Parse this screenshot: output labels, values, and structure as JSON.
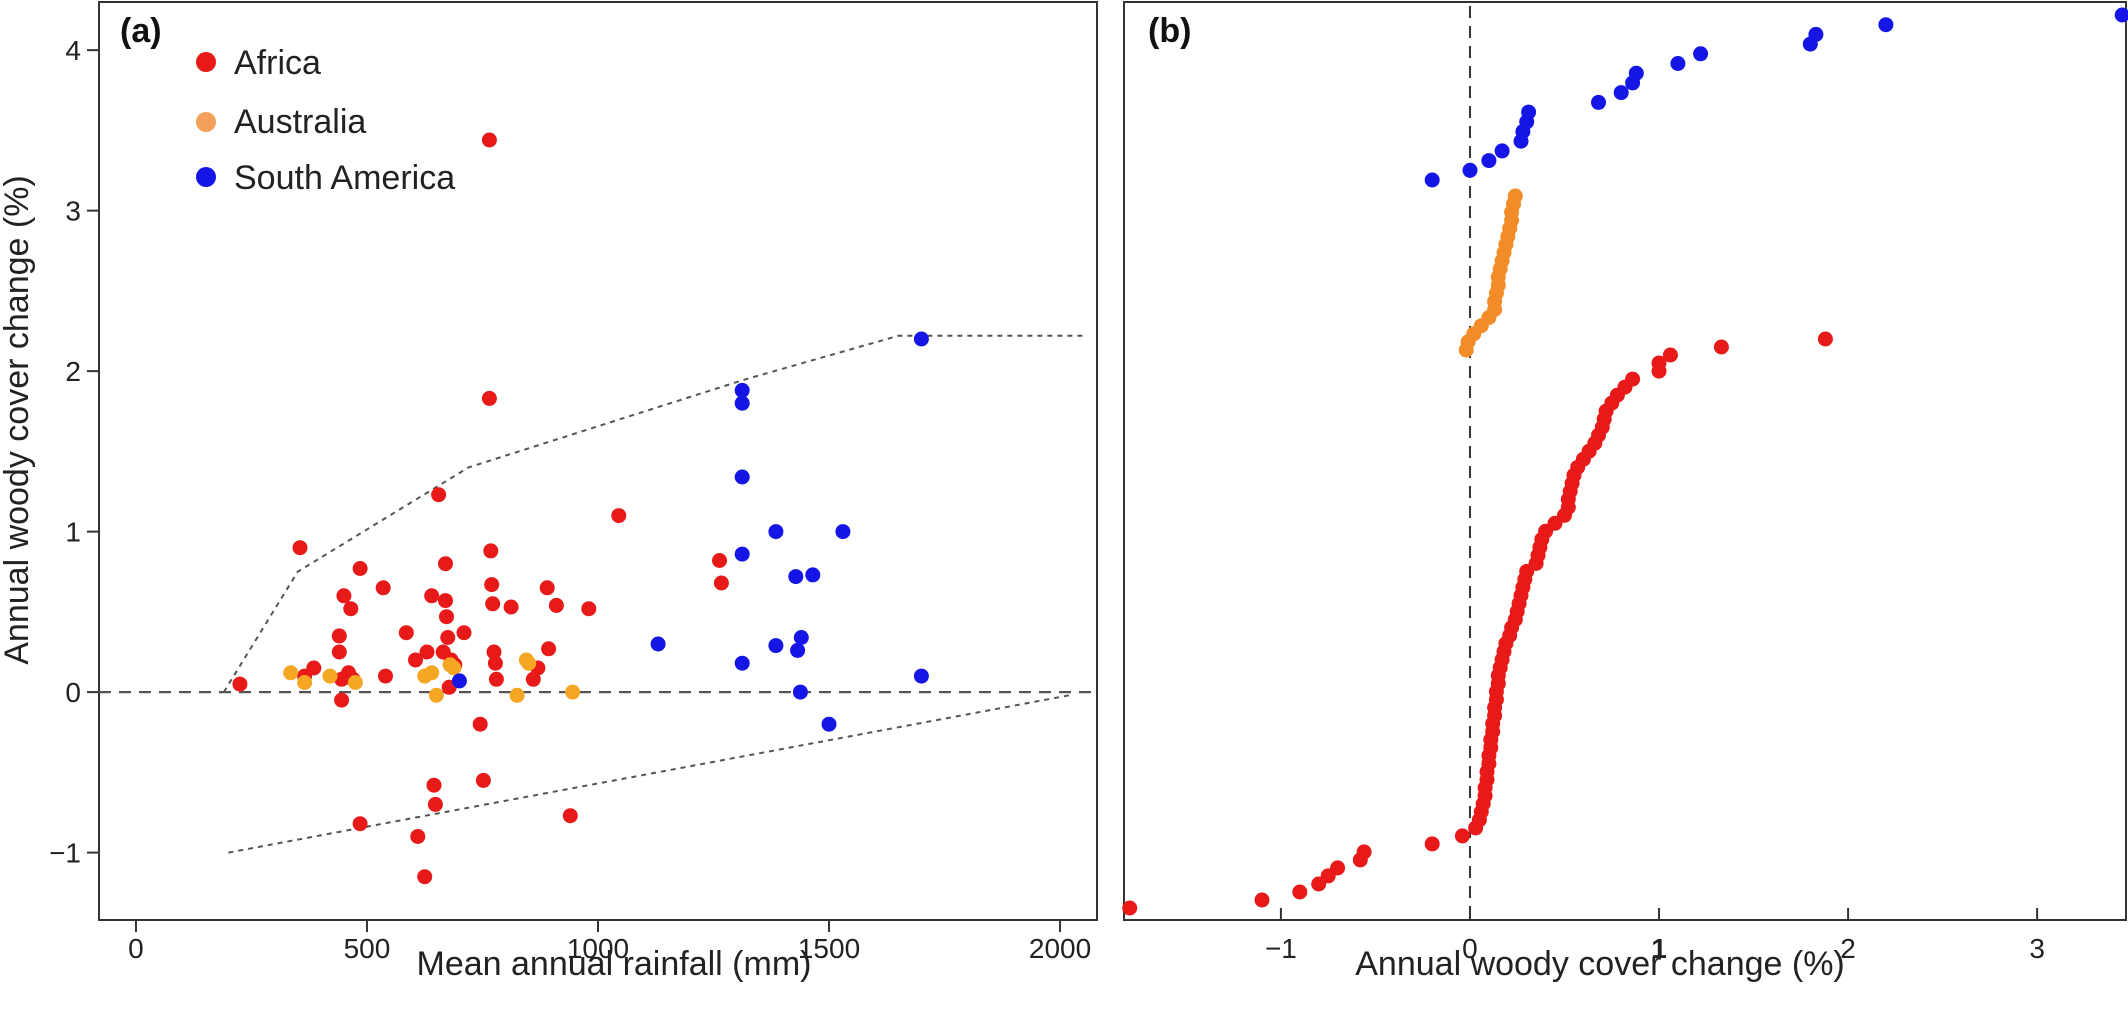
{
  "chart_data": [
    {
      "panel": "(a)",
      "type": "scatter",
      "xlabel": "Mean annual rainfall (mm)",
      "ylabel": "Annual woody cover change (%)",
      "xlim": [
        -80,
        2080
      ],
      "ylim": [
        -1.42,
        4.3
      ],
      "xticks": [
        0,
        500,
        1000,
        1500,
        2000
      ],
      "yticks": [
        -1,
        0,
        1,
        2,
        3,
        4
      ],
      "legend_position": "top-left",
      "reference_lines": [
        {
          "style": "dashed",
          "color": "#555555",
          "points": [
            [
              -80,
              0
            ],
            [
              2080,
              0
            ]
          ]
        },
        {
          "style": "dotted",
          "color": "#555555",
          "points": [
            [
              190,
              0
            ],
            [
              350,
              0.75
            ],
            [
              720,
              1.4
            ],
            [
              1320,
              1.95
            ],
            [
              1650,
              2.22
            ],
            [
              2050,
              2.22
            ]
          ]
        },
        {
          "style": "dotted",
          "color": "#555555",
          "points": [
            [
              200,
              -1.0
            ],
            [
              2020,
              -0.02
            ]
          ]
        }
      ],
      "series": [
        {
          "name": "Africa",
          "color": "#e81919",
          "points": [
            [
              225,
              0.05
            ],
            [
              355,
              0.9
            ],
            [
              365,
              0.1
            ],
            [
              385,
              0.15
            ],
            [
              440,
              0.35
            ],
            [
              440,
              0.25
            ],
            [
              445,
              -0.05
            ],
            [
              445,
              0.08
            ],
            [
              450,
              0.6
            ],
            [
              460,
              0.12
            ],
            [
              465,
              0.52
            ],
            [
              470,
              0.08
            ],
            [
              485,
              0.77
            ],
            [
              485,
              -0.82
            ],
            [
              535,
              0.65
            ],
            [
              540,
              0.1
            ],
            [
              585,
              0.37
            ],
            [
              605,
              0.2
            ],
            [
              610,
              -0.9
            ],
            [
              625,
              -1.15
            ],
            [
              630,
              0.25
            ],
            [
              640,
              0.6
            ],
            [
              645,
              -0.58
            ],
            [
              648,
              -0.7
            ],
            [
              655,
              1.23
            ],
            [
              665,
              0.25
            ],
            [
              670,
              0.8
            ],
            [
              670,
              0.57
            ],
            [
              672,
              0.47
            ],
            [
              675,
              0.34
            ],
            [
              678,
              0.03
            ],
            [
              682,
              0.2
            ],
            [
              690,
              0.17
            ],
            [
              710,
              0.37
            ],
            [
              745,
              -0.2
            ],
            [
              752,
              -0.55
            ],
            [
              765,
              3.44
            ],
            [
              765,
              1.83
            ],
            [
              768,
              0.88
            ],
            [
              770,
              0.67
            ],
            [
              772,
              0.55
            ],
            [
              775,
              0.25
            ],
            [
              778,
              0.18
            ],
            [
              780,
              0.08
            ],
            [
              812,
              0.53
            ],
            [
              860,
              0.08
            ],
            [
              870,
              0.15
            ],
            [
              890,
              0.65
            ],
            [
              893,
              0.27
            ],
            [
              910,
              0.54
            ],
            [
              940,
              -0.77
            ],
            [
              980,
              0.52
            ],
            [
              1045,
              1.1
            ],
            [
              1263,
              0.82
            ],
            [
              1267,
              0.68
            ]
          ]
        },
        {
          "name": "Australia",
          "color": "#f5a623",
          "points": [
            [
              335,
              0.12
            ],
            [
              365,
              0.06
            ],
            [
              420,
              0.1
            ],
            [
              475,
              0.06
            ],
            [
              625,
              0.1
            ],
            [
              640,
              0.12
            ],
            [
              650,
              -0.02
            ],
            [
              680,
              0.17
            ],
            [
              688,
              0.15
            ],
            [
              825,
              -0.02
            ],
            [
              845,
              0.2
            ],
            [
              850,
              0.18
            ],
            [
              945,
              0.0
            ]
          ]
        },
        {
          "name": "South America",
          "color": "#1515e6",
          "points": [
            [
              700,
              0.07
            ],
            [
              1130,
              0.3
            ],
            [
              1312,
              1.88
            ],
            [
              1312,
              1.8
            ],
            [
              1312,
              1.34
            ],
            [
              1312,
              0.86
            ],
            [
              1312,
              0.18
            ],
            [
              1385,
              1.0
            ],
            [
              1385,
              0.29
            ],
            [
              1428,
              0.72
            ],
            [
              1432,
              0.26
            ],
            [
              1438,
              0.0
            ],
            [
              1440,
              0.34
            ],
            [
              1465,
              0.73
            ],
            [
              1500,
              -0.2
            ],
            [
              1530,
              1.0
            ],
            [
              1700,
              2.2
            ],
            [
              1700,
              0.1
            ]
          ]
        }
      ]
    },
    {
      "panel": "(b)",
      "type": "scatter",
      "xlabel": "Annual woody cover change (%)",
      "ylabel": "",
      "xlim": [
        -1.83,
        3.47
      ],
      "xticks": [
        -1,
        0,
        1,
        2,
        3
      ],
      "reference_lines": [
        {
          "style": "dashed",
          "color": "#333333",
          "orientation": "vertical",
          "x": 0
        }
      ],
      "series": [
        {
          "name": "Africa",
          "color": "#e81919",
          "values": [
            -1.8,
            -1.1,
            -0.9,
            -0.8,
            -0.75,
            -0.7,
            -0.58,
            -0.56,
            -0.2,
            -0.04,
            0.03,
            0.05,
            0.06,
            0.07,
            0.08,
            0.08,
            0.09,
            0.09,
            0.1,
            0.1,
            0.11,
            0.11,
            0.12,
            0.12,
            0.13,
            0.13,
            0.14,
            0.14,
            0.15,
            0.15,
            0.16,
            0.17,
            0.18,
            0.19,
            0.21,
            0.22,
            0.24,
            0.25,
            0.26,
            0.27,
            0.28,
            0.29,
            0.3,
            0.35,
            0.36,
            0.37,
            0.38,
            0.4,
            0.45,
            0.5,
            0.52,
            0.52,
            0.53,
            0.54,
            0.55,
            0.57,
            0.6,
            0.63,
            0.66,
            0.68,
            0.7,
            0.71,
            0.72,
            0.75,
            0.78,
            0.82,
            0.86,
            1.0,
            1.0,
            1.06,
            1.33,
            1.88
          ]
        },
        {
          "name": "Australia",
          "color": "#f28c28",
          "values": [
            -0.02,
            -0.01,
            0.02,
            0.06,
            0.1,
            0.13,
            0.13,
            0.14,
            0.15,
            0.15,
            0.16,
            0.17,
            0.18,
            0.19,
            0.2,
            0.21,
            0.22,
            0.22,
            0.23,
            0.24
          ]
        },
        {
          "name": "South America",
          "color": "#1515e6",
          "values": [
            -0.2,
            0.0,
            0.1,
            0.17,
            0.27,
            0.28,
            0.3,
            0.31,
            0.68,
            0.8,
            0.86,
            0.88,
            1.1,
            1.22,
            1.8,
            1.83,
            2.2,
            3.45
          ]
        }
      ]
    }
  ]
}
